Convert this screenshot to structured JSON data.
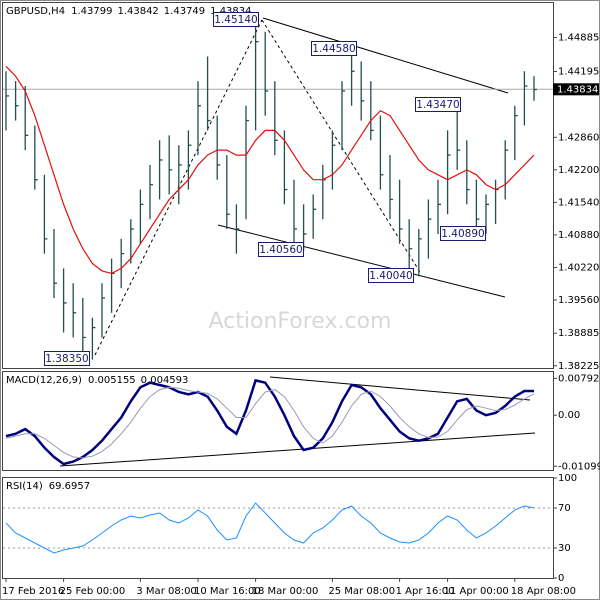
{
  "chart_data": [
    {
      "type": "ohlc",
      "title": "GBPUSD,H4",
      "header_values": [
        1.43799,
        1.43842,
        1.43749,
        1.43834
      ],
      "categories": [
        "17 Feb 2016",
        null,
        null,
        null,
        null,
        null,
        "25 Feb 00:00",
        null,
        null,
        null,
        null,
        null,
        null,
        null,
        "3 Mar 08:00",
        null,
        null,
        null,
        null,
        null,
        "10 Mar 16:00",
        null,
        null,
        null,
        null,
        null,
        "18 Mar 00:00",
        null,
        null,
        null,
        null,
        null,
        null,
        null,
        "25 Mar 08:00",
        null,
        null,
        null,
        null,
        null,
        null,
        "1 Apr 16:00",
        null,
        null,
        null,
        null,
        "11 Apr 00:00",
        null,
        null,
        null,
        null,
        null,
        null,
        "18 Apr 08:00",
        null,
        null
      ],
      "high": [
        1.442,
        1.44,
        1.439,
        1.431,
        1.421,
        1.41,
        1.402,
        1.399,
        1.396,
        1.392,
        1.399,
        1.404,
        1.408,
        1.412,
        1.418,
        1.423,
        1.428,
        1.429,
        1.427,
        1.43,
        1.44,
        1.445,
        1.433,
        1.425,
        1.415,
        1.435,
        1.4514,
        1.45,
        1.44,
        1.43,
        1.42,
        1.415,
        1.417,
        1.423,
        1.43,
        1.44,
        1.4458,
        1.444,
        1.44,
        1.433,
        1.425,
        1.42,
        1.412,
        1.41,
        1.416,
        1.42,
        1.43,
        1.4347,
        1.428,
        1.42,
        1.417,
        1.42,
        1.428,
        1.435,
        1.442,
        1.441
      ],
      "low": [
        1.43,
        1.432,
        1.426,
        1.418,
        1.405,
        1.396,
        1.389,
        1.388,
        1.385,
        1.3835,
        1.388,
        1.393,
        1.398,
        1.403,
        1.407,
        1.412,
        1.416,
        1.417,
        1.415,
        1.418,
        1.425,
        1.43,
        1.42,
        1.41,
        1.405,
        1.412,
        1.43,
        1.433,
        1.425,
        1.415,
        1.407,
        1.4056,
        1.408,
        1.412,
        1.418,
        1.426,
        1.435,
        1.432,
        1.428,
        1.418,
        1.412,
        1.407,
        1.402,
        1.4004,
        1.404,
        1.409,
        1.413,
        1.422,
        1.415,
        1.4089,
        1.409,
        1.411,
        1.416,
        1.424,
        1.431,
        1.436
      ],
      "close": [
        1.437,
        1.435,
        1.429,
        1.42,
        1.408,
        1.399,
        1.395,
        1.393,
        1.388,
        1.39,
        1.396,
        1.401,
        1.405,
        1.41,
        1.415,
        1.419,
        1.424,
        1.422,
        1.423,
        1.427,
        1.435,
        1.432,
        1.423,
        1.413,
        1.41,
        1.432,
        1.448,
        1.438,
        1.428,
        1.418,
        1.41,
        1.409,
        1.414,
        1.42,
        1.427,
        1.438,
        1.442,
        1.436,
        1.43,
        1.421,
        1.416,
        1.41,
        1.406,
        1.408,
        1.412,
        1.415,
        1.425,
        1.426,
        1.418,
        1.412,
        1.415,
        1.418,
        1.426,
        1.433,
        1.439,
        1.4383
      ],
      "color": "#1f4f4f",
      "ma_values": [
        1.443,
        1.441,
        1.438,
        1.433,
        1.427,
        1.421,
        1.415,
        1.41,
        1.406,
        1.403,
        1.4015,
        1.401,
        1.402,
        1.404,
        1.407,
        1.41,
        1.413,
        1.416,
        1.418,
        1.42,
        1.423,
        1.425,
        1.426,
        1.426,
        1.425,
        1.425,
        1.428,
        1.43,
        1.43,
        1.428,
        1.425,
        1.422,
        1.42,
        1.42,
        1.421,
        1.423,
        1.426,
        1.429,
        1.432,
        1.434,
        1.433,
        1.43,
        1.427,
        1.424,
        1.422,
        1.421,
        1.42,
        1.421,
        1.422,
        1.421,
        1.419,
        1.418,
        1.419,
        1.421,
        1.423,
        1.425
      ],
      "ma_color": "#e41010",
      "ylim": [
        1.3818,
        1.45585
      ],
      "yticks": [
        {
          "value": 1.44885,
          "label": "1.44885"
        },
        {
          "value": 1.44195,
          "label": "1.44195"
        },
        {
          "value": 1.4286,
          "label": "1.42860"
        },
        {
          "value": 1.422,
          "label": "1.42200"
        },
        {
          "value": 1.4154,
          "label": "1.41540"
        },
        {
          "value": 1.4088,
          "label": "1.40880"
        },
        {
          "value": 1.4022,
          "label": "1.40220"
        },
        {
          "value": 1.3956,
          "label": "1.39560"
        },
        {
          "value": 1.38885,
          "label": "1.38885"
        },
        {
          "value": 1.38225,
          "label": "1.38225"
        }
      ],
      "annotations": [
        "1.45140",
        "1.44580",
        "1.43470",
        "1.40560",
        "1.40040",
        "1.40890",
        "1.38350"
      ],
      "watermark": "ActionForex.com"
    },
    {
      "type": "line",
      "title": "MACD(12,26,9)",
      "header_values": [
        0.005155,
        0.004593
      ],
      "series": [
        {
          "color": "#00007f",
          "values": [
            -0.0045,
            -0.004,
            -0.003,
            -0.0045,
            -0.007,
            -0.009,
            -0.0105,
            -0.01,
            -0.009,
            -0.0075,
            -0.0055,
            -0.003,
            -0.0005,
            0.003,
            0.006,
            0.007,
            0.0065,
            0.006,
            0.005,
            0.0045,
            0.005,
            0.004,
            0.001,
            -0.0025,
            -0.004,
            0.001,
            0.0075,
            0.007,
            0.004,
            0,
            -0.0045,
            -0.0075,
            -0.007,
            -0.005,
            -0.0015,
            0.003,
            0.0065,
            0.006,
            0.0045,
            0.0015,
            -0.001,
            -0.0035,
            -0.005,
            -0.0055,
            -0.005,
            -0.004,
            -0.0005,
            0.003,
            0.0035,
            0.001,
            0,
            0.0005,
            0.002,
            0.004,
            0.0052,
            0.0052
          ]
        },
        {
          "color": "#9a9ab8",
          "values": [
            -0.005,
            -0.0045,
            -0.004,
            -0.004,
            -0.005,
            -0.0065,
            -0.008,
            -0.009,
            -0.0092,
            -0.0088,
            -0.0078,
            -0.0062,
            -0.004,
            -0.0015,
            0.0015,
            0.004,
            0.0055,
            0.006,
            0.0058,
            0.0053,
            0.005,
            0.0047,
            0.0035,
            0.0015,
            -0.0005,
            -0.0005,
            0.0025,
            0.005,
            0.0055,
            0.004,
            0.001,
            -0.0025,
            -0.005,
            -0.006,
            -0.0045,
            -0.0015,
            0.002,
            0.0045,
            0.0052,
            0.004,
            0.002,
            -0.0005,
            -0.0025,
            -0.004,
            -0.0048,
            -0.0047,
            -0.0035,
            -0.001,
            0.0012,
            0.002,
            0.0015,
            0.001,
            0.0012,
            0.0022,
            0.0035,
            0.0046
          ]
        }
      ],
      "ylim": [
        -0.0118,
        0.0093
      ],
      "yticks": [
        0.007924,
        {
          "value": 0,
          "label": "0.00"
        },
        -0.010996
      ]
    },
    {
      "type": "line",
      "title": "RSI(14)",
      "header_values": [
        69.6957
      ],
      "series": [
        {
          "color": "#1e90ff",
          "values": [
            55,
            45,
            40,
            35,
            30,
            25,
            28,
            30,
            32,
            38,
            45,
            52,
            58,
            62,
            60,
            63,
            65,
            58,
            55,
            60,
            68,
            62,
            48,
            38,
            40,
            62,
            75,
            65,
            55,
            45,
            38,
            35,
            45,
            50,
            58,
            68,
            72,
            62,
            55,
            45,
            40,
            36,
            35,
            38,
            45,
            55,
            62,
            58,
            48,
            40,
            45,
            52,
            60,
            68,
            72,
            70
          ]
        }
      ],
      "ylim": [
        0,
        100
      ],
      "yticks": [
        100,
        70,
        30,
        0
      ],
      "levels": [
        70,
        30
      ]
    }
  ]
}
